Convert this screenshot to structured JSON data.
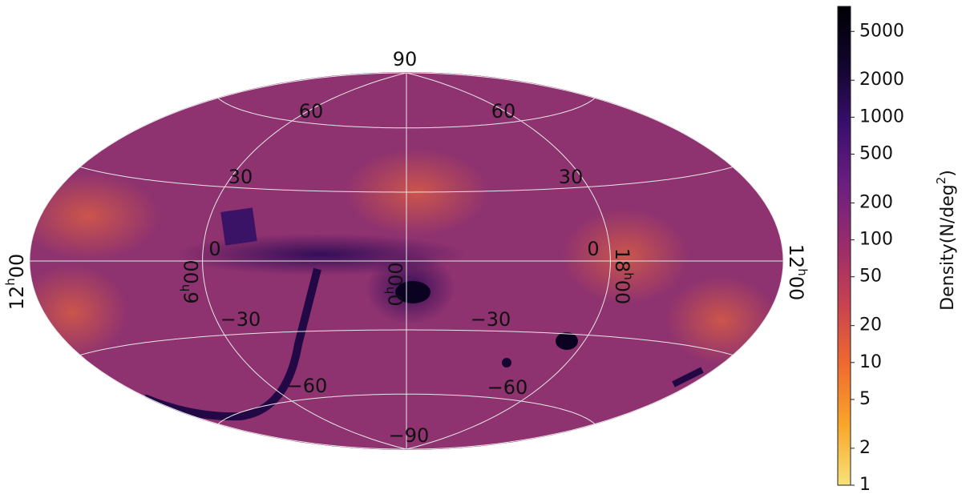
{
  "chart_data": {
    "type": "skymap",
    "projection": "hammer",
    "lat_ticks": [
      {
        "value": 90,
        "label": "90"
      },
      {
        "value": 60,
        "label": "60"
      },
      {
        "value": 30,
        "label": "30"
      },
      {
        "value": 0,
        "label": "0"
      },
      {
        "value": -30,
        "label": "−30"
      },
      {
        "value": -60,
        "label": "−60"
      },
      {
        "value": -90,
        "label": "−90"
      }
    ],
    "lon_ticks": [
      {
        "value": 12,
        "hours": "12",
        "sup": "h",
        "minutes": "00"
      },
      {
        "value": 6,
        "hours": "6",
        "sup": "h",
        "minutes": "00"
      },
      {
        "value": 0,
        "hours": "0",
        "sup": "h",
        "minutes": "00"
      },
      {
        "value": 18,
        "hours": "18",
        "sup": "h",
        "minutes": "00"
      },
      {
        "value": 12,
        "hours": "12",
        "sup": "h",
        "minutes": "00"
      }
    ],
    "grid": true,
    "colorbar": {
      "label": "Density(N/deg",
      "label_sup": "2",
      "label_end": ")",
      "scale": "log",
      "lim": [
        1,
        8000
      ],
      "ticks": [
        1,
        2,
        5,
        10,
        20,
        50,
        100,
        200,
        500,
        1000,
        2000,
        5000
      ],
      "colors": [
        "#f7e27a",
        "#f9a62a",
        "#f06b2e",
        "#c9424f",
        "#9a2c6b",
        "#6c1f80",
        "#3a0f6e",
        "#12052e",
        "#000004"
      ]
    }
  }
}
